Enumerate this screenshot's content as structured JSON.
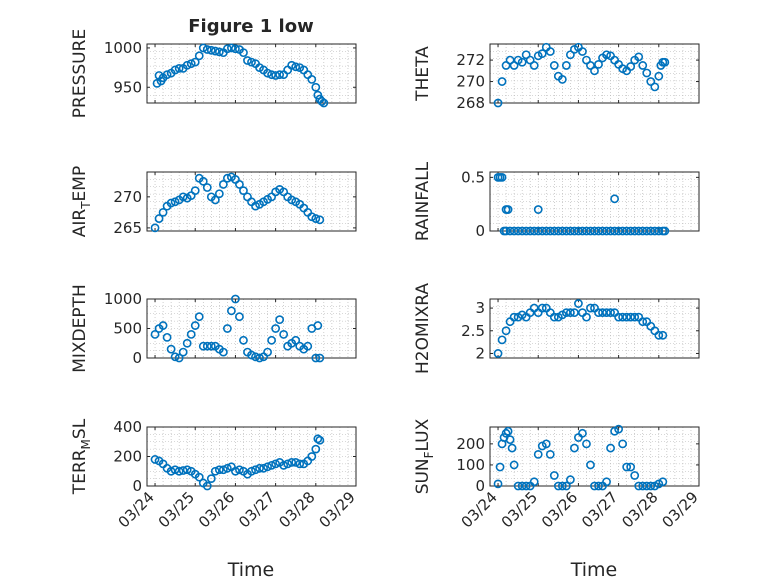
{
  "figure": {
    "title": "Figure 1 low",
    "xlabel": "Time"
  },
  "colors": {
    "marker": "#0072BD",
    "axis": "#262626",
    "grid": "#b0b0b0"
  },
  "chart_data": [
    {
      "type": "scatter",
      "ylabel": "PRESSURE",
      "ylim": [
        930,
        1005
      ],
      "yticks": [
        950,
        1000
      ],
      "x": [
        0.05,
        0.1,
        0.15,
        0.2,
        0.3,
        0.4,
        0.5,
        0.6,
        0.7,
        0.8,
        0.9,
        1.0,
        1.1,
        1.2,
        1.3,
        1.4,
        1.5,
        1.6,
        1.7,
        1.8,
        1.9,
        2.0,
        2.1,
        2.2,
        2.3,
        2.4,
        2.5,
        2.6,
        2.7,
        2.8,
        2.9,
        3.0,
        3.1,
        3.2,
        3.3,
        3.4,
        3.5,
        3.6,
        3.7,
        3.8,
        3.9,
        4.0,
        4.05,
        4.1,
        4.15,
        4.2
      ],
      "y": [
        955,
        965,
        958,
        962,
        966,
        968,
        972,
        974,
        974,
        978,
        980,
        982,
        990,
        1000,
        998,
        997,
        996,
        995,
        994,
        999,
        1000,
        999,
        998,
        994,
        984,
        982,
        980,
        975,
        972,
        968,
        966,
        965,
        966,
        966,
        972,
        978,
        976,
        975,
        972,
        966,
        960,
        950,
        940,
        935,
        932,
        930
      ],
      "show_x_tick_labels": false
    },
    {
      "type": "scatter",
      "ylabel": "THETA",
      "ylim": [
        268,
        273.5
      ],
      "yticks": [
        268,
        270,
        272
      ],
      "x": [
        0.0,
        0.1,
        0.2,
        0.3,
        0.4,
        0.5,
        0.6,
        0.7,
        0.8,
        0.9,
        1.0,
        1.1,
        1.2,
        1.3,
        1.4,
        1.5,
        1.6,
        1.7,
        1.8,
        1.9,
        2.0,
        2.1,
        2.2,
        2.3,
        2.4,
        2.5,
        2.6,
        2.7,
        2.8,
        2.9,
        3.0,
        3.1,
        3.2,
        3.3,
        3.4,
        3.5,
        3.6,
        3.7,
        3.8,
        3.9,
        4.0,
        4.05,
        4.1,
        4.15
      ],
      "y": [
        268,
        270,
        271.5,
        272,
        271.5,
        272,
        271.8,
        272.5,
        272,
        271.5,
        272.4,
        272.6,
        273.2,
        272.8,
        271.5,
        270.5,
        270.2,
        271.5,
        272.5,
        273,
        273.2,
        272.8,
        272,
        271.5,
        271,
        271.6,
        272.2,
        272.5,
        272.4,
        272,
        271.6,
        271.2,
        271,
        271.4,
        272,
        272.3,
        271.5,
        270.8,
        270,
        269.5,
        270.5,
        271.5,
        271.8,
        271.8
      ],
      "show_x_tick_labels": false
    },
    {
      "type": "scatter",
      "ylabel": "AIR_TEMP",
      "ylim": [
        264.5,
        274
      ],
      "yticks": [
        265,
        270
      ],
      "x": [
        0.0,
        0.1,
        0.2,
        0.3,
        0.4,
        0.5,
        0.6,
        0.7,
        0.8,
        0.9,
        1.0,
        1.1,
        1.2,
        1.3,
        1.4,
        1.5,
        1.6,
        1.7,
        1.8,
        1.9,
        2.0,
        2.1,
        2.2,
        2.3,
        2.4,
        2.5,
        2.6,
        2.7,
        2.8,
        2.9,
        3.0,
        3.1,
        3.2,
        3.3,
        3.4,
        3.5,
        3.6,
        3.7,
        3.8,
        3.9,
        4.0,
        4.1
      ],
      "y": [
        265,
        266.5,
        267.5,
        268.5,
        269,
        269.2,
        269.5,
        270,
        269.8,
        270.2,
        271,
        273,
        272.5,
        271.5,
        270,
        269.5,
        270.5,
        272,
        273,
        273.2,
        272.8,
        272,
        271,
        270,
        269.2,
        268.5,
        268.8,
        269.2,
        269.6,
        270,
        270.8,
        271.2,
        270.8,
        270,
        269.5,
        269.2,
        268.8,
        268.2,
        267.5,
        266.8,
        266.5,
        266.3
      ],
      "show_x_tick_labels": false
    },
    {
      "type": "scatter",
      "ylabel": "RAINFALL",
      "ylim": [
        0,
        0.55
      ],
      "yticks": [
        0,
        0.5
      ],
      "x": [
        0.0,
        0.05,
        0.1,
        0.15,
        0.2,
        0.3,
        0.4,
        0.5,
        0.6,
        0.7,
        0.8,
        0.9,
        1.0,
        1.1,
        1.2,
        1.3,
        1.4,
        1.5,
        1.6,
        1.7,
        1.8,
        1.9,
        2.0,
        2.1,
        2.2,
        2.3,
        2.4,
        2.5,
        2.6,
        2.7,
        2.8,
        2.9,
        3.0,
        3.1,
        3.2,
        3.3,
        3.4,
        3.5,
        3.6,
        3.7,
        3.8,
        3.9,
        4.0,
        4.1,
        4.15,
        0.2,
        0.25,
        1.0,
        2.9
      ],
      "y": [
        0.5,
        0.5,
        0.5,
        0,
        0,
        0,
        0,
        0,
        0,
        0,
        0,
        0,
        0,
        0,
        0,
        0,
        0,
        0,
        0,
        0,
        0,
        0,
        0,
        0,
        0,
        0,
        0,
        0,
        0,
        0,
        0,
        0,
        0,
        0,
        0,
        0,
        0,
        0,
        0,
        0,
        0,
        0,
        0,
        0,
        0,
        0.2,
        0.2,
        0.2,
        0.3
      ],
      "show_x_tick_labels": false
    },
    {
      "type": "scatter",
      "ylabel": "MIXDEPTH",
      "ylim": [
        0,
        1000
      ],
      "yticks": [
        0,
        500,
        1000
      ],
      "x": [
        0.0,
        0.1,
        0.2,
        0.3,
        0.4,
        0.5,
        0.6,
        0.7,
        0.8,
        0.9,
        1.0,
        1.1,
        1.2,
        1.3,
        1.4,
        1.5,
        1.6,
        1.7,
        1.8,
        1.9,
        2.0,
        2.1,
        2.2,
        2.3,
        2.4,
        2.5,
        2.6,
        2.7,
        2.8,
        2.9,
        3.0,
        3.1,
        3.2,
        3.3,
        3.4,
        3.5,
        3.6,
        3.7,
        3.8,
        3.9,
        4.0,
        4.05,
        4.1
      ],
      "y": [
        400,
        500,
        550,
        350,
        150,
        20,
        0,
        100,
        250,
        400,
        550,
        700,
        200,
        200,
        200,
        200,
        150,
        100,
        500,
        800,
        1000,
        700,
        300,
        100,
        50,
        20,
        0,
        20,
        100,
        300,
        500,
        650,
        400,
        200,
        250,
        300,
        200,
        150,
        200,
        500,
        0,
        550,
        0
      ],
      "show_x_tick_labels": false
    },
    {
      "type": "scatter",
      "ylabel": "H2OMIXRA",
      "ylim": [
        1.9,
        3.2
      ],
      "yticks": [
        2,
        2.5,
        3
      ],
      "x": [
        0.0,
        0.1,
        0.2,
        0.3,
        0.4,
        0.5,
        0.6,
        0.7,
        0.8,
        0.9,
        1.0,
        1.1,
        1.2,
        1.3,
        1.4,
        1.5,
        1.6,
        1.7,
        1.8,
        1.9,
        2.0,
        2.1,
        2.2,
        2.3,
        2.4,
        2.5,
        2.6,
        2.7,
        2.8,
        2.9,
        3.0,
        3.1,
        3.2,
        3.3,
        3.4,
        3.5,
        3.6,
        3.7,
        3.8,
        3.9,
        4.0,
        4.1
      ],
      "y": [
        2,
        2.3,
        2.5,
        2.7,
        2.8,
        2.8,
        2.85,
        2.8,
        2.9,
        3,
        2.9,
        3,
        3,
        2.9,
        2.8,
        2.8,
        2.85,
        2.9,
        2.9,
        2.9,
        3.1,
        2.9,
        2.8,
        3,
        3,
        2.9,
        2.9,
        2.9,
        2.9,
        2.9,
        2.8,
        2.8,
        2.8,
        2.8,
        2.8,
        2.8,
        2.7,
        2.7,
        2.6,
        2.5,
        2.4,
        2.4
      ],
      "show_x_tick_labels": false
    },
    {
      "type": "scatter",
      "ylabel": "TERR_MSL",
      "ylim": [
        0,
        400
      ],
      "yticks": [
        0,
        200,
        400
      ],
      "x": [
        0.0,
        0.1,
        0.2,
        0.3,
        0.4,
        0.5,
        0.6,
        0.7,
        0.8,
        0.9,
        1.0,
        1.1,
        1.2,
        1.3,
        1.4,
        1.5,
        1.6,
        1.7,
        1.8,
        1.9,
        2.0,
        2.1,
        2.2,
        2.3,
        2.4,
        2.5,
        2.6,
        2.7,
        2.8,
        2.9,
        3.0,
        3.1,
        3.2,
        3.3,
        3.4,
        3.5,
        3.6,
        3.7,
        3.8,
        3.9,
        4.0,
        4.05,
        4.1
      ],
      "y": [
        180,
        170,
        150,
        120,
        100,
        110,
        100,
        105,
        110,
        100,
        80,
        60,
        20,
        0,
        50,
        100,
        110,
        110,
        120,
        130,
        100,
        110,
        100,
        80,
        100,
        110,
        120,
        120,
        130,
        140,
        150,
        160,
        140,
        150,
        160,
        160,
        150,
        150,
        170,
        200,
        250,
        320,
        310
      ],
      "show_x_tick_labels": true
    },
    {
      "type": "scatter",
      "ylabel": "SUN_FLUX",
      "ylim": [
        0,
        280
      ],
      "yticks": [
        0,
        100,
        200
      ],
      "x": [
        0.0,
        0.05,
        0.1,
        0.15,
        0.2,
        0.25,
        0.3,
        0.35,
        0.4,
        0.5,
        0.6,
        0.7,
        0.8,
        0.9,
        1.0,
        1.1,
        1.2,
        1.3,
        1.4,
        1.5,
        1.6,
        1.7,
        1.8,
        1.9,
        2.0,
        2.1,
        2.2,
        2.3,
        2.4,
        2.5,
        2.6,
        2.7,
        2.8,
        2.9,
        3.0,
        3.1,
        3.2,
        3.3,
        3.4,
        3.5,
        3.6,
        3.7,
        3.8,
        3.9,
        4.0,
        4.1
      ],
      "y": [
        10,
        90,
        200,
        230,
        250,
        260,
        220,
        180,
        100,
        0,
        0,
        0,
        0,
        20,
        150,
        190,
        200,
        150,
        50,
        0,
        0,
        0,
        30,
        180,
        230,
        250,
        200,
        100,
        0,
        0,
        0,
        20,
        180,
        260,
        270,
        200,
        90,
        90,
        50,
        0,
        0,
        0,
        0,
        0,
        10,
        20
      ],
      "show_x_tick_labels": true
    }
  ],
  "x_ticks": [
    "03/24",
    "03/25",
    "03/26",
    "03/27",
    "03/28",
    "03/29"
  ]
}
